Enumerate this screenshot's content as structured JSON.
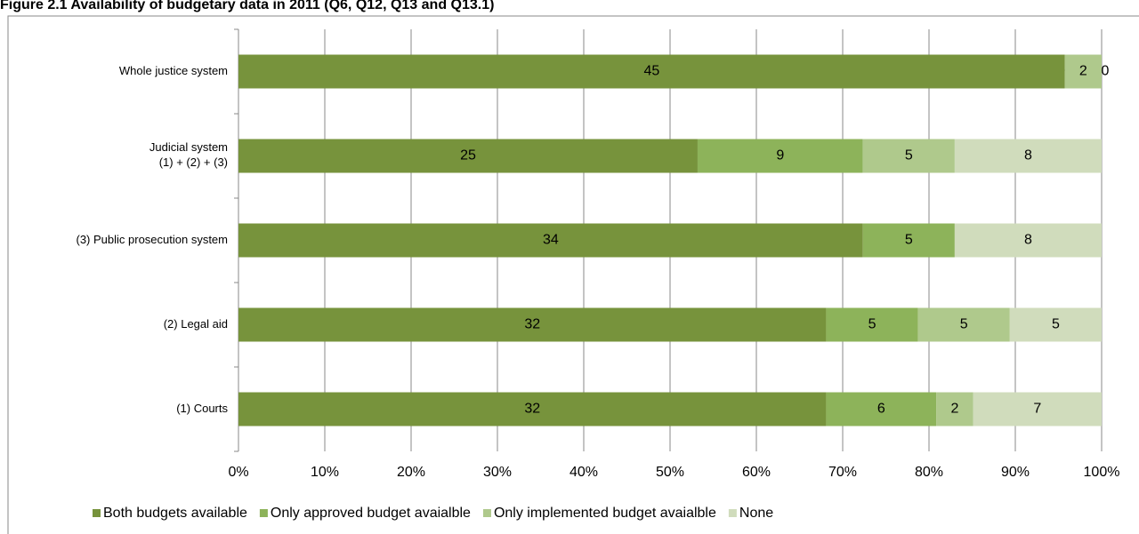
{
  "chart_data": {
    "type": "bar",
    "orientation": "horizontal",
    "stacking": "percent",
    "title": "Figure 2.1 Availability of budgetary data in 2011 (Q6, Q12, Q13 and Q13.1)",
    "categories": [
      "Whole justice system",
      "Judicial system\n(1) + (2) + (3)",
      "(3) Public prosecution system",
      "(2) Legal aid",
      "(1) Courts"
    ],
    "series": [
      {
        "name": "Both budgets available",
        "color": "#77933c",
        "values": [
          45,
          25,
          34,
          32,
          32
        ]
      },
      {
        "name": "Only approved budget avaialble",
        "color": "#8db35a",
        "values": [
          0,
          9,
          5,
          5,
          6
        ]
      },
      {
        "name": "Only implemented budget avaialble",
        "color": "#afc98c",
        "values": [
          2,
          5,
          0,
          5,
          2
        ]
      },
      {
        "name": "None",
        "color": "#d0dcbc",
        "values": [
          0,
          8,
          8,
          5,
          7
        ]
      }
    ],
    "xlim": [
      0,
      100
    ],
    "xticks": [
      {
        "value": 0,
        "label": "0%"
      },
      {
        "value": 10,
        "label": "10%"
      },
      {
        "value": 20,
        "label": "20%"
      },
      {
        "value": 30,
        "label": "30%"
      },
      {
        "value": 40,
        "label": "40%"
      },
      {
        "value": 50,
        "label": "50%"
      },
      {
        "value": 60,
        "label": "60%"
      },
      {
        "value": 70,
        "label": "70%"
      },
      {
        "value": 80,
        "label": "80%"
      },
      {
        "value": 90,
        "label": "90%"
      },
      {
        "value": 100,
        "label": "100%"
      }
    ],
    "grid": true,
    "legend": "bottom"
  }
}
